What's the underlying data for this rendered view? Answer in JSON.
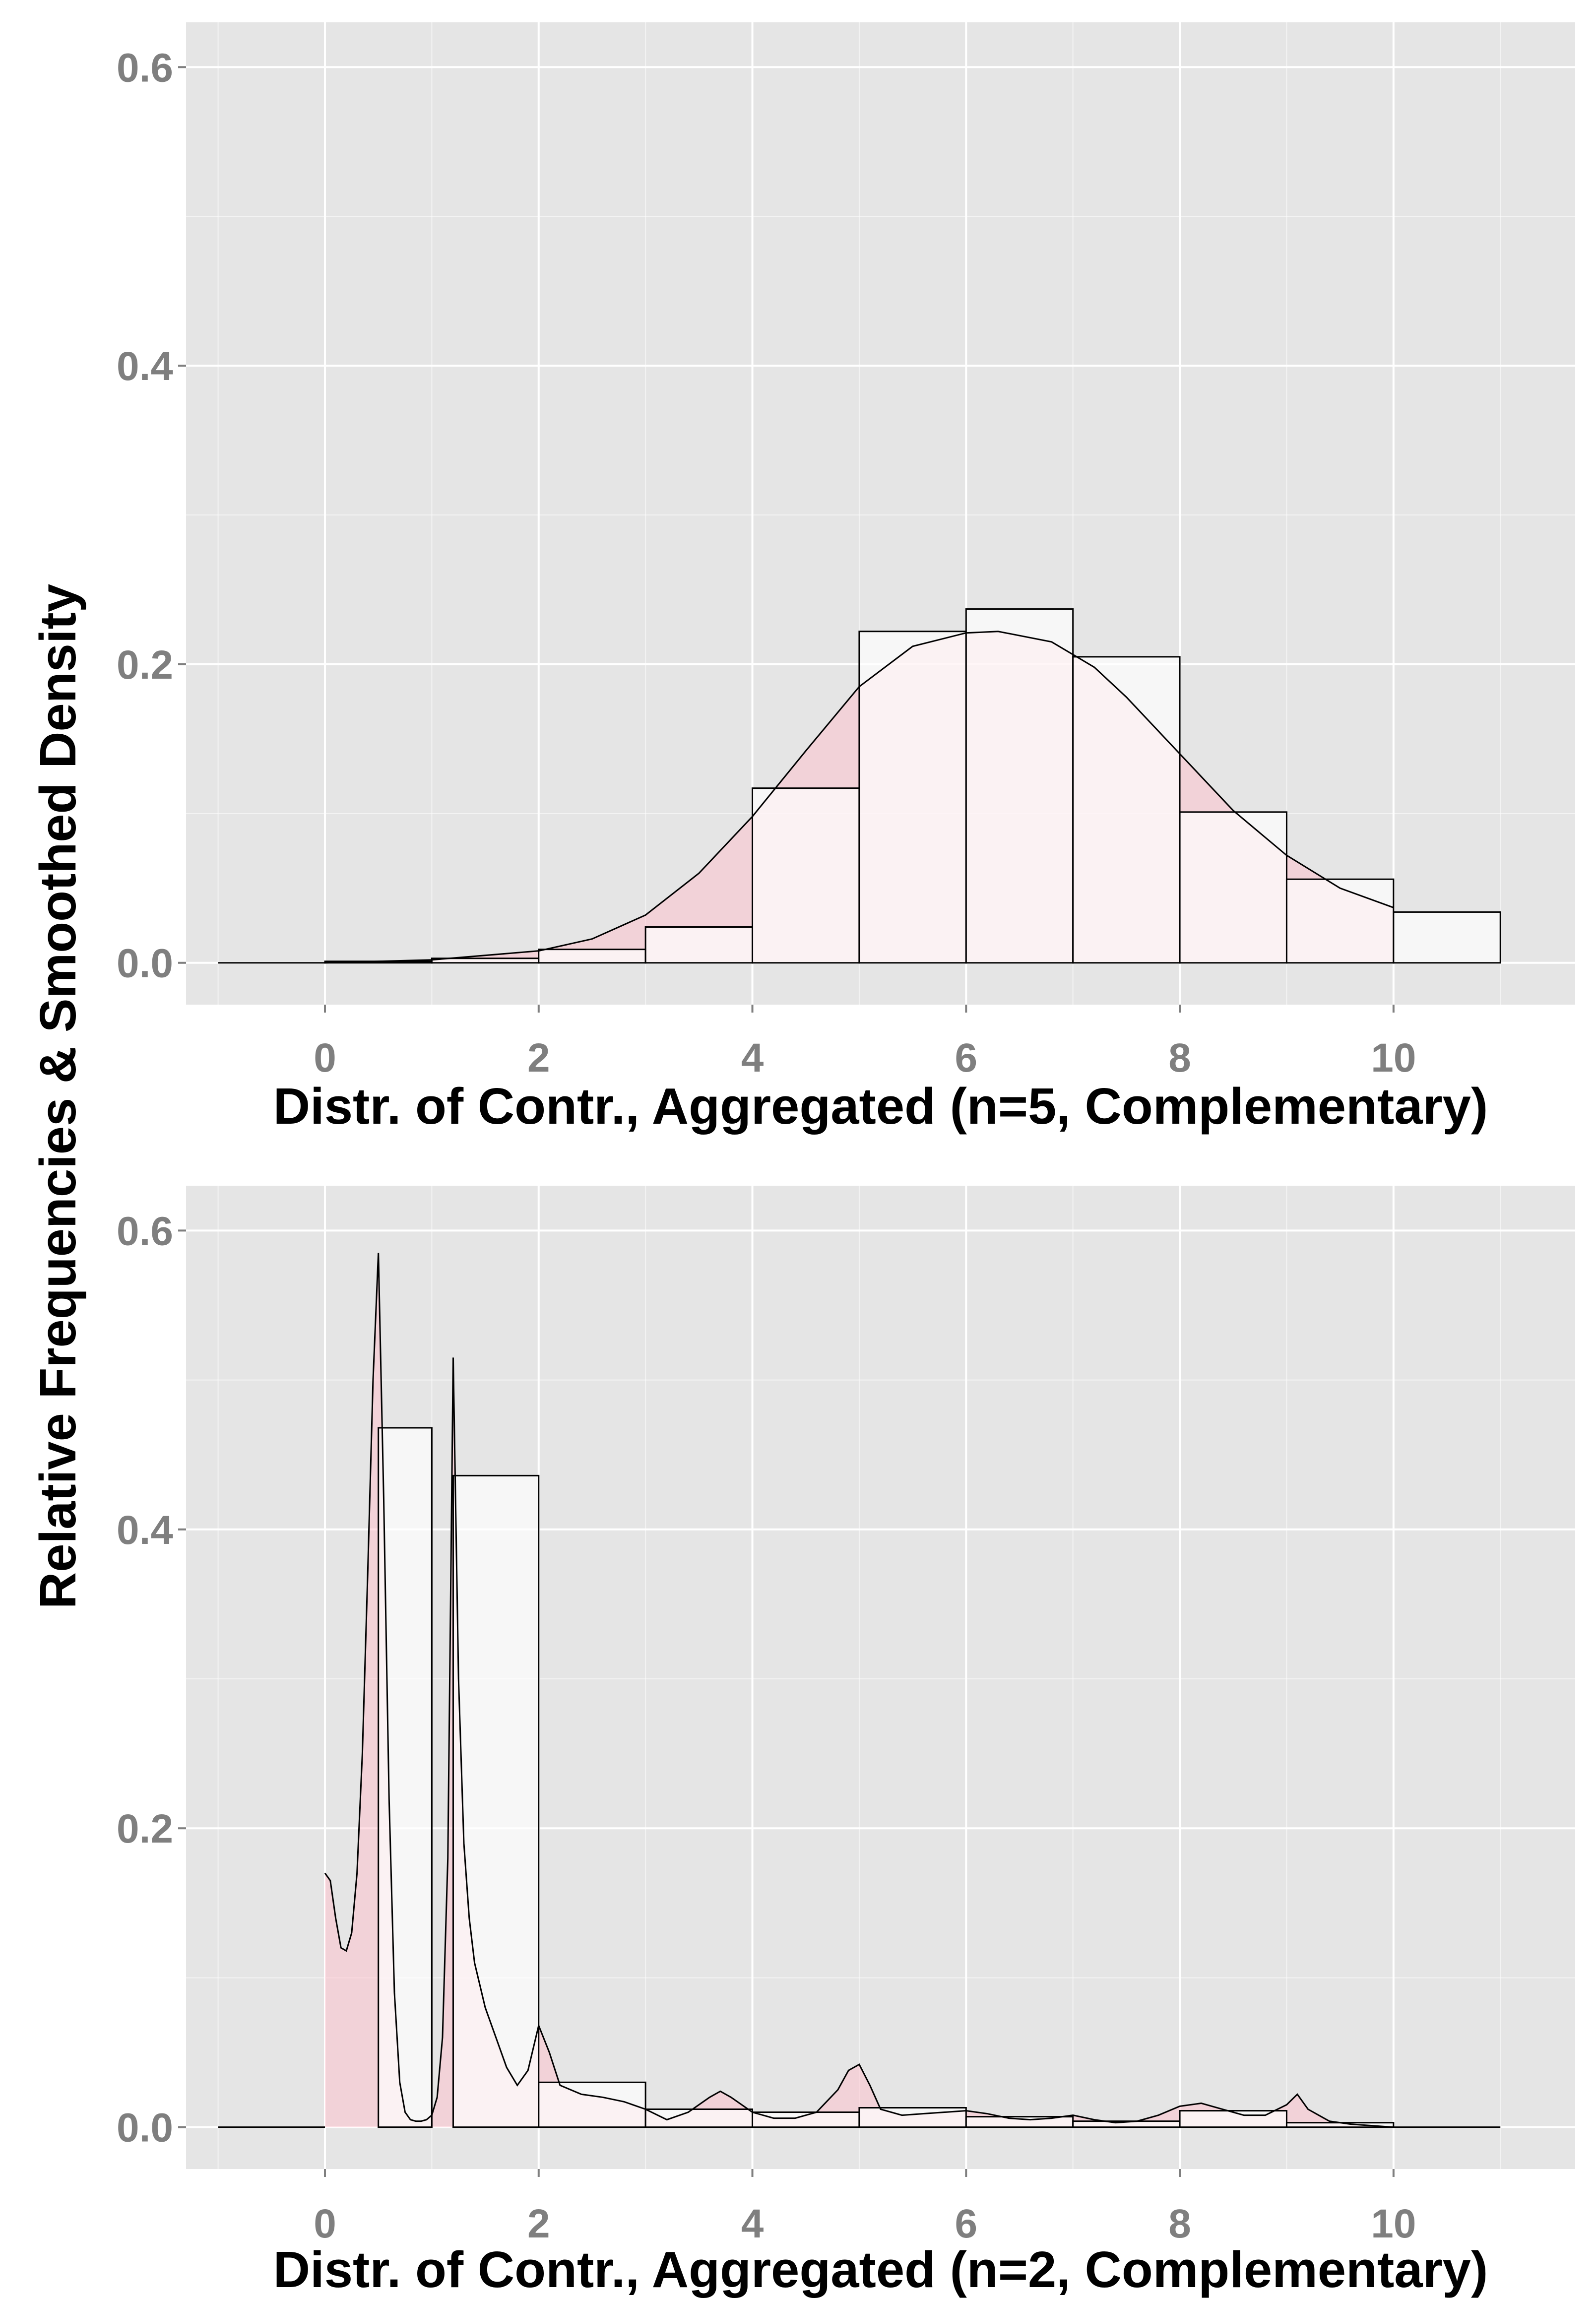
{
  "y_axis_label": "Relative Frequencies & Smoothed Density",
  "colors": {
    "panel_bg": "#e5e5e5",
    "grid": "#ffffff",
    "bar_fill": "#ffffff",
    "bar_stroke": "#000000",
    "density_fill": "#ffc0cb",
    "tick_text": "#7f7f7f"
  },
  "chart_data": [
    {
      "type": "bar",
      "xlabel": "Distr. of Contr., Aggregated (n=5, Complementary)",
      "xlim": [
        -1.3,
        11.7
      ],
      "ylim": [
        -0.028,
        0.63
      ],
      "x_ticks": [
        "0",
        "2",
        "4",
        "6",
        "8",
        "10"
      ],
      "y_ticks": [
        "0.0",
        "0.2",
        "0.4",
        "0.6"
      ],
      "bins": [
        {
          "x0": -1,
          "x1": 0,
          "value": 0.0
        },
        {
          "x0": 0,
          "x1": 1,
          "value": 0.001
        },
        {
          "x0": 1,
          "x1": 2,
          "value": 0.003
        },
        {
          "x0": 2,
          "x1": 3,
          "value": 0.009
        },
        {
          "x0": 3,
          "x1": 4,
          "value": 0.024
        },
        {
          "x0": 4,
          "x1": 5,
          "value": 0.117
        },
        {
          "x0": 5,
          "x1": 6,
          "value": 0.222
        },
        {
          "x0": 6,
          "x1": 7,
          "value": 0.237
        },
        {
          "x0": 7,
          "x1": 8,
          "value": 0.205
        },
        {
          "x0": 8,
          "x1": 9,
          "value": 0.101
        },
        {
          "x0": 9,
          "x1": 10,
          "value": 0.056
        },
        {
          "x0": 10,
          "x1": 11,
          "value": 0.034
        }
      ],
      "density": {
        "x": [
          0,
          1,
          2,
          2.5,
          3,
          3.5,
          4,
          4.5,
          5,
          5.5,
          6,
          6.3,
          6.8,
          7.2,
          7.5,
          8,
          8.5,
          9,
          9.5,
          10
        ],
        "y": [
          0.0,
          0.002,
          0.008,
          0.016,
          0.032,
          0.06,
          0.098,
          0.142,
          0.185,
          0.212,
          0.221,
          0.222,
          0.215,
          0.198,
          0.178,
          0.14,
          0.102,
          0.072,
          0.05,
          0.037
        ]
      }
    },
    {
      "type": "bar",
      "xlabel": "Distr. of Contr., Aggregated (n=2, Complementary)",
      "xlim": [
        -1.3,
        11.7
      ],
      "ylim": [
        -0.028,
        0.63
      ],
      "x_ticks": [
        "0",
        "2",
        "4",
        "6",
        "8",
        "10"
      ],
      "y_ticks": [
        "0.0",
        "0.2",
        "0.4",
        "0.6"
      ],
      "bins": [
        {
          "x0": -1,
          "x1": 0,
          "value": 0.0
        },
        {
          "x0": 0,
          "x1": 0.5,
          "value": 0.0
        },
        {
          "x0": 0.5,
          "x1": 1,
          "value": 0.468
        },
        {
          "x0": 1,
          "x1": 1.2,
          "value": 0.0
        },
        {
          "x0": 1.2,
          "x1": 2,
          "value": 0.436
        },
        {
          "x0": 2,
          "x1": 3,
          "value": 0.03
        },
        {
          "x0": 3,
          "x1": 4,
          "value": 0.012
        },
        {
          "x0": 4,
          "x1": 5,
          "value": 0.01
        },
        {
          "x0": 5,
          "x1": 6,
          "value": 0.013
        },
        {
          "x0": 6,
          "x1": 7,
          "value": 0.007
        },
        {
          "x0": 7,
          "x1": 8,
          "value": 0.004
        },
        {
          "x0": 8,
          "x1": 9,
          "value": 0.011
        },
        {
          "x0": 9,
          "x1": 10,
          "value": 0.003
        },
        {
          "x0": 10,
          "x1": 11,
          "value": 0.0
        }
      ],
      "density": {
        "x": [
          0,
          0.05,
          0.1,
          0.15,
          0.2,
          0.25,
          0.3,
          0.35,
          0.4,
          0.45,
          0.5,
          0.55,
          0.6,
          0.65,
          0.7,
          0.75,
          0.8,
          0.85,
          0.9,
          0.95,
          1.0,
          1.05,
          1.1,
          1.15,
          1.2,
          1.25,
          1.3,
          1.35,
          1.4,
          1.45,
          1.5,
          1.6,
          1.7,
          1.8,
          1.9,
          2.0,
          2.1,
          2.2,
          2.4,
          2.6,
          2.8,
          3.0,
          3.2,
          3.4,
          3.6,
          3.7,
          3.8,
          4.0,
          4.2,
          4.4,
          4.6,
          4.8,
          4.9,
          5.0,
          5.1,
          5.2,
          5.4,
          5.6,
          5.8,
          6.0,
          6.2,
          6.4,
          6.6,
          6.8,
          7.0,
          7.2,
          7.4,
          7.6,
          7.8,
          8.0,
          8.2,
          8.4,
          8.6,
          8.8,
          9.0,
          9.1,
          9.2,
          9.4,
          9.6,
          9.8,
          10.0,
          10.5,
          11.0
        ],
        "y": [
          0.17,
          0.165,
          0.14,
          0.12,
          0.118,
          0.13,
          0.17,
          0.25,
          0.37,
          0.5,
          0.585,
          0.42,
          0.22,
          0.09,
          0.03,
          0.01,
          0.005,
          0.004,
          0.004,
          0.005,
          0.008,
          0.02,
          0.06,
          0.18,
          0.515,
          0.3,
          0.19,
          0.14,
          0.11,
          0.095,
          0.08,
          0.06,
          0.04,
          0.028,
          0.038,
          0.068,
          0.05,
          0.028,
          0.022,
          0.02,
          0.017,
          0.012,
          0.005,
          0.01,
          0.02,
          0.024,
          0.02,
          0.01,
          0.006,
          0.006,
          0.01,
          0.025,
          0.038,
          0.042,
          0.028,
          0.012,
          0.008,
          0.009,
          0.01,
          0.011,
          0.009,
          0.006,
          0.005,
          0.006,
          0.008,
          0.005,
          0.003,
          0.004,
          0.008,
          0.014,
          0.016,
          0.012,
          0.008,
          0.008,
          0.015,
          0.022,
          0.012,
          0.004,
          0.002,
          0.001,
          0.0,
          0.0,
          0.0
        ]
      }
    }
  ]
}
